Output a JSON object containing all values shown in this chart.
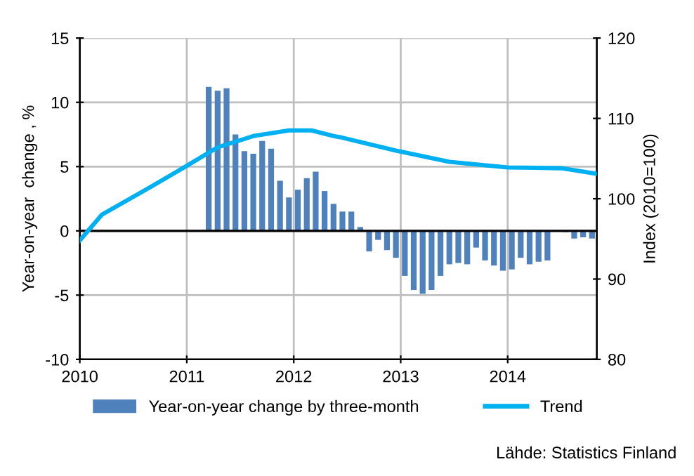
{
  "chart_data": {
    "type": "bar",
    "ylabel": "Year-on-year  change , %",
    "y2label": "Index (2010=100)",
    "x": [
      "2011-03-15",
      "2011-04-15",
      "2011-05-15",
      "2011-06-15",
      "2011-07-15",
      "2011-08-15",
      "2011-09-15",
      "2011-10-15",
      "2011-11-15",
      "2011-12-15",
      "2012-01-15",
      "2012-02-15",
      "2012-03-15",
      "2012-04-15",
      "2012-05-15",
      "2012-06-15",
      "2012-07-15",
      "2012-08-15",
      "2012-09-15",
      "2012-10-15",
      "2012-11-15",
      "2012-12-15",
      "2013-01-15",
      "2013-02-15",
      "2013-03-15",
      "2013-04-15",
      "2013-05-15",
      "2013-06-15",
      "2013-07-15",
      "2013-08-15",
      "2013-09-15",
      "2013-10-15",
      "2013-11-15",
      "2013-12-15",
      "2014-01-15",
      "2014-02-15",
      "2014-03-15",
      "2014-04-15",
      "2014-05-15",
      "2014-06-15",
      "2014-07-15",
      "2014-08-15",
      "2014-09-15",
      "2014-10-15"
    ],
    "series": [
      {
        "name": "Year-on-year change by three-month",
        "color": "#4f81bd",
        "values": [
          11.2,
          10.9,
          11.1,
          7.5,
          6.2,
          6.0,
          7.0,
          6.4,
          3.9,
          2.6,
          3.2,
          4.1,
          4.6,
          3.1,
          2.1,
          1.5,
          1.5,
          0.3,
          -1.6,
          -0.7,
          -1.5,
          -2.1,
          -3.5,
          -4.6,
          -4.9,
          -4.6,
          -3.5,
          -2.6,
          -2.5,
          -2.6,
          -1.3,
          -2.3,
          -2.7,
          -3.1,
          -3.0,
          -2.1,
          -2.6,
          -2.4,
          -2.3,
          null,
          -0.1,
          -0.6,
          -0.5,
          -0.6
        ]
      },
      {
        "name": "Trend",
        "type": "line",
        "axis": "y2",
        "color": "#00b0f0",
        "x": [
          "2010-01-01",
          "2010-03-15",
          "2010-09-01",
          "2011-01-01",
          "2011-04-15",
          "2011-08-15",
          "2011-12-15",
          "2012-03-01",
          "2012-05-15",
          "2012-06-15",
          "2012-12-15",
          "2013-06-15",
          "2014-01-01",
          "2014-07-01",
          "2014-11-01"
        ],
        "values": [
          94.8,
          98.0,
          101.5,
          104.1,
          106.4,
          107.8,
          108.5,
          108.5,
          107.8,
          107.6,
          106.0,
          104.6,
          103.9,
          103.8,
          103.1
        ]
      }
    ],
    "xlim": [
      "2010-01-01",
      "2014-11-01"
    ],
    "xticks": [
      {
        "value": "2010-01-01",
        "label": "2010"
      },
      {
        "value": "2011-01-01",
        "label": "2011"
      },
      {
        "value": "2012-01-01",
        "label": "2012"
      },
      {
        "value": "2013-01-01",
        "label": "2013"
      },
      {
        "value": "2014-01-01",
        "label": "2014"
      }
    ],
    "ylim": [
      -10,
      15
    ],
    "yticks": [
      -10,
      -5,
      0,
      5,
      10,
      15
    ],
    "y2lim": [
      80,
      120
    ],
    "y2ticks": [
      80,
      90,
      100,
      110,
      120
    ],
    "grid": true,
    "legend": "bottom",
    "annotations": [
      "Lähde: Statistics Finland"
    ]
  }
}
